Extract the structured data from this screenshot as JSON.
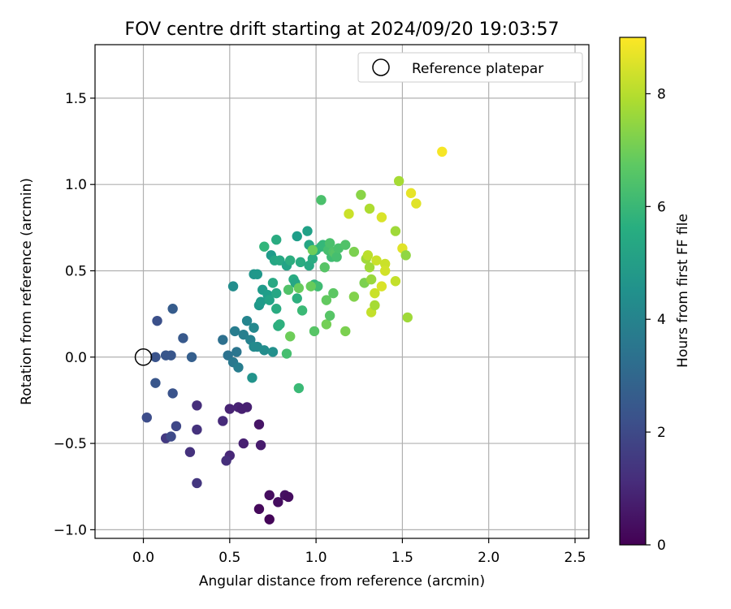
{
  "chart_data": {
    "type": "scatter",
    "title": "FOV centre drift starting at 2024/09/20 19:03:57",
    "xlabel": "Angular distance from reference (arcmin)",
    "ylabel": "Rotation from reference (arcmin)",
    "xlim": [
      -0.28,
      2.58
    ],
    "ylim": [
      -1.05,
      1.81
    ],
    "xticks": [
      0.0,
      0.5,
      1.0,
      1.5,
      2.0,
      2.5
    ],
    "xtick_labels": [
      "0.0",
      "0.5",
      "1.0",
      "1.5",
      "2.0",
      "2.5"
    ],
    "yticks": [
      -1.0,
      -0.5,
      0.0,
      0.5,
      1.0,
      1.5
    ],
    "ytick_labels": [
      "−1.0",
      "−0.5",
      "0.0",
      "0.5",
      "1.0",
      "1.5"
    ],
    "grid": true,
    "legend": {
      "position": "top-right",
      "entries": [
        "Reference platepar"
      ]
    },
    "reference_point": {
      "x": 0.0,
      "y": 0.0,
      "name": "Reference platepar"
    },
    "colorbar": {
      "label": "Hours from first FF file",
      "colormap": "viridis",
      "range": [
        0,
        9
      ],
      "ticks": [
        0,
        2,
        4,
        6,
        8
      ],
      "tick_labels": [
        "0",
        "2",
        "4",
        "6",
        "8"
      ]
    },
    "points": [
      {
        "x": 0.73,
        "y": -0.94,
        "c": 0.1
      },
      {
        "x": 0.67,
        "y": -0.88,
        "c": 0.2
      },
      {
        "x": 0.78,
        "y": -0.84,
        "c": 0.3
      },
      {
        "x": 0.73,
        "y": -0.8,
        "c": 0.3
      },
      {
        "x": 0.82,
        "y": -0.8,
        "c": 0.4
      },
      {
        "x": 0.84,
        "y": -0.81,
        "c": 0.3
      },
      {
        "x": 0.67,
        "y": -0.39,
        "c": 0.5
      },
      {
        "x": 0.68,
        "y": -0.51,
        "c": 0.7
      },
      {
        "x": 0.58,
        "y": -0.5,
        "c": 0.8
      },
      {
        "x": 0.5,
        "y": -0.57,
        "c": 1.0
      },
      {
        "x": 0.48,
        "y": -0.6,
        "c": 1.2
      },
      {
        "x": 0.46,
        "y": -0.37,
        "c": 1.1
      },
      {
        "x": 0.5,
        "y": -0.3,
        "c": 0.9
      },
      {
        "x": 0.55,
        "y": -0.29,
        "c": 0.9
      },
      {
        "x": 0.57,
        "y": -0.3,
        "c": 0.8
      },
      {
        "x": 0.6,
        "y": -0.29,
        "c": 0.8
      },
      {
        "x": 0.31,
        "y": -0.28,
        "c": 1.2
      },
      {
        "x": 0.31,
        "y": -0.42,
        "c": 1.3
      },
      {
        "x": 0.27,
        "y": -0.55,
        "c": 1.3
      },
      {
        "x": 0.31,
        "y": -0.73,
        "c": 1.4
      },
      {
        "x": 0.13,
        "y": -0.47,
        "c": 1.5
      },
      {
        "x": 0.16,
        "y": -0.46,
        "c": 2.0
      },
      {
        "x": 0.19,
        "y": -0.4,
        "c": 1.9
      },
      {
        "x": 0.02,
        "y": -0.35,
        "c": 2.1
      },
      {
        "x": 0.17,
        "y": -0.21,
        "c": 2.3
      },
      {
        "x": 0.07,
        "y": -0.15,
        "c": 2.4
      },
      {
        "x": 0.07,
        "y": 0.0,
        "c": 2.3
      },
      {
        "x": 0.13,
        "y": 0.01,
        "c": 2.4
      },
      {
        "x": 0.16,
        "y": 0.01,
        "c": 2.4
      },
      {
        "x": 0.28,
        "y": 0.0,
        "c": 2.7
      },
      {
        "x": 0.23,
        "y": 0.11,
        "c": 2.5
      },
      {
        "x": 0.08,
        "y": 0.21,
        "c": 2.2
      },
      {
        "x": 0.17,
        "y": 0.28,
        "c": 2.6
      },
      {
        "x": 0.46,
        "y": 0.1,
        "c": 3.3
      },
      {
        "x": 0.49,
        "y": 0.01,
        "c": 3.4
      },
      {
        "x": 0.52,
        "y": -0.03,
        "c": 3.6
      },
      {
        "x": 0.54,
        "y": 0.03,
        "c": 3.5
      },
      {
        "x": 0.55,
        "y": -0.06,
        "c": 3.8
      },
      {
        "x": 0.53,
        "y": 0.15,
        "c": 3.8
      },
      {
        "x": 0.58,
        "y": 0.13,
        "c": 3.9
      },
      {
        "x": 0.62,
        "y": 0.1,
        "c": 4.0
      },
      {
        "x": 0.6,
        "y": 0.21,
        "c": 4.1
      },
      {
        "x": 0.64,
        "y": 0.17,
        "c": 4.2
      },
      {
        "x": 0.64,
        "y": 0.06,
        "c": 4.3
      },
      {
        "x": 0.66,
        "y": 0.06,
        "c": 4.3
      },
      {
        "x": 0.7,
        "y": 0.04,
        "c": 4.4
      },
      {
        "x": 0.75,
        "y": 0.03,
        "c": 4.5
      },
      {
        "x": 0.63,
        "y": -0.12,
        "c": 4.6
      },
      {
        "x": 0.52,
        "y": 0.41,
        "c": 4.4
      },
      {
        "x": 0.64,
        "y": 0.48,
        "c": 4.7
      },
      {
        "x": 0.66,
        "y": 0.48,
        "c": 4.8
      },
      {
        "x": 0.67,
        "y": 0.3,
        "c": 4.8
      },
      {
        "x": 0.68,
        "y": 0.32,
        "c": 4.9
      },
      {
        "x": 0.69,
        "y": 0.39,
        "c": 4.9
      },
      {
        "x": 0.72,
        "y": 0.36,
        "c": 5.0
      },
      {
        "x": 0.73,
        "y": 0.33,
        "c": 5.2
      },
      {
        "x": 0.77,
        "y": 0.37,
        "c": 5.3
      },
      {
        "x": 0.75,
        "y": 0.43,
        "c": 5.4
      },
      {
        "x": 0.77,
        "y": 0.28,
        "c": 5.5
      },
      {
        "x": 0.78,
        "y": 0.18,
        "c": 5.6
      },
      {
        "x": 0.79,
        "y": 0.19,
        "c": 5.7
      },
      {
        "x": 0.83,
        "y": 0.02,
        "c": 6.3
      },
      {
        "x": 0.7,
        "y": 0.64,
        "c": 5.9
      },
      {
        "x": 0.74,
        "y": 0.59,
        "c": 4.9
      },
      {
        "x": 0.76,
        "y": 0.56,
        "c": 5.3
      },
      {
        "x": 0.77,
        "y": 0.68,
        "c": 5.5
      },
      {
        "x": 0.79,
        "y": 0.56,
        "c": 5.4
      },
      {
        "x": 0.83,
        "y": 0.53,
        "c": 5.2
      },
      {
        "x": 0.85,
        "y": 0.56,
        "c": 5.6
      },
      {
        "x": 0.87,
        "y": 0.45,
        "c": 5.5
      },
      {
        "x": 0.88,
        "y": 0.43,
        "c": 5.3
      },
      {
        "x": 0.89,
        "y": 0.7,
        "c": 5.0
      },
      {
        "x": 0.89,
        "y": 0.34,
        "c": 5.7
      },
      {
        "x": 0.91,
        "y": 0.55,
        "c": 5.5
      },
      {
        "x": 0.92,
        "y": 0.27,
        "c": 6.1
      },
      {
        "x": 0.95,
        "y": 0.73,
        "c": 5.1
      },
      {
        "x": 0.96,
        "y": 0.65,
        "c": 5.3
      },
      {
        "x": 0.96,
        "y": 0.53,
        "c": 5.4
      },
      {
        "x": 0.98,
        "y": 0.57,
        "c": 5.5
      },
      {
        "x": 0.99,
        "y": 0.42,
        "c": 5.8
      },
      {
        "x": 1.0,
        "y": 0.62,
        "c": 5.7
      },
      {
        "x": 1.01,
        "y": 0.41,
        "c": 6.2
      },
      {
        "x": 1.03,
        "y": 0.64,
        "c": 5.9
      },
      {
        "x": 1.04,
        "y": 0.65,
        "c": 6.0
      },
      {
        "x": 1.05,
        "y": 0.52,
        "c": 6.6
      },
      {
        "x": 1.07,
        "y": 0.62,
        "c": 6.3
      },
      {
        "x": 1.08,
        "y": 0.66,
        "c": 6.4
      },
      {
        "x": 1.09,
        "y": 0.58,
        "c": 6.2
      },
      {
        "x": 1.1,
        "y": 0.61,
        "c": 6.5
      },
      {
        "x": 1.11,
        "y": 0.6,
        "c": 6.6
      },
      {
        "x": 1.12,
        "y": 0.58,
        "c": 6.3
      },
      {
        "x": 1.13,
        "y": 0.63,
        "c": 6.4
      },
      {
        "x": 1.17,
        "y": 0.65,
        "c": 6.5
      },
      {
        "x": 1.03,
        "y": 0.91,
        "c": 6.4
      },
      {
        "x": 0.98,
        "y": 0.62,
        "c": 7.0
      },
      {
        "x": 0.97,
        "y": 0.41,
        "c": 6.9
      },
      {
        "x": 0.9,
        "y": 0.4,
        "c": 6.9
      },
      {
        "x": 0.84,
        "y": 0.39,
        "c": 6.5
      },
      {
        "x": 0.85,
        "y": 0.12,
        "c": 7.0
      },
      {
        "x": 0.99,
        "y": 0.15,
        "c": 6.6
      },
      {
        "x": 1.06,
        "y": 0.33,
        "c": 6.8
      },
      {
        "x": 1.06,
        "y": 0.19,
        "c": 7.1
      },
      {
        "x": 1.08,
        "y": 0.24,
        "c": 6.6
      },
      {
        "x": 1.1,
        "y": 0.37,
        "c": 6.7
      },
      {
        "x": 1.17,
        "y": 0.15,
        "c": 7.2
      },
      {
        "x": 0.9,
        "y": -0.18,
        "c": 6.1
      },
      {
        "x": 1.22,
        "y": 0.35,
        "c": 7.3
      },
      {
        "x": 1.22,
        "y": 0.61,
        "c": 7.2
      },
      {
        "x": 1.26,
        "y": 0.94,
        "c": 7.4
      },
      {
        "x": 1.28,
        "y": 0.43,
        "c": 7.2
      },
      {
        "x": 1.29,
        "y": 0.57,
        "c": 7.7
      },
      {
        "x": 1.3,
        "y": 0.59,
        "c": 8.1
      },
      {
        "x": 1.31,
        "y": 0.52,
        "c": 7.7
      },
      {
        "x": 1.32,
        "y": 0.45,
        "c": 7.6
      },
      {
        "x": 1.32,
        "y": 0.26,
        "c": 8.2
      },
      {
        "x": 1.34,
        "y": 0.3,
        "c": 7.8
      },
      {
        "x": 1.34,
        "y": 0.37,
        "c": 8.3
      },
      {
        "x": 1.35,
        "y": 0.56,
        "c": 8.3
      },
      {
        "x": 1.38,
        "y": 0.41,
        "c": 8.5
      },
      {
        "x": 1.38,
        "y": 0.81,
        "c": 8.5
      },
      {
        "x": 1.4,
        "y": 0.54,
        "c": 8.3
      },
      {
        "x": 1.4,
        "y": 0.5,
        "c": 8.4
      },
      {
        "x": 1.31,
        "y": 0.86,
        "c": 7.9
      },
      {
        "x": 1.19,
        "y": 0.83,
        "c": 8.3
      },
      {
        "x": 1.46,
        "y": 0.73,
        "c": 7.7
      },
      {
        "x": 1.46,
        "y": 0.44,
        "c": 8.2
      },
      {
        "x": 1.48,
        "y": 1.02,
        "c": 7.8
      },
      {
        "x": 1.5,
        "y": 0.63,
        "c": 8.6
      },
      {
        "x": 1.52,
        "y": 0.59,
        "c": 7.5
      },
      {
        "x": 1.53,
        "y": 0.23,
        "c": 7.7
      },
      {
        "x": 1.55,
        "y": 0.95,
        "c": 8.7
      },
      {
        "x": 1.58,
        "y": 0.89,
        "c": 8.6
      },
      {
        "x": 1.73,
        "y": 1.19,
        "c": 8.9
      }
    ]
  }
}
